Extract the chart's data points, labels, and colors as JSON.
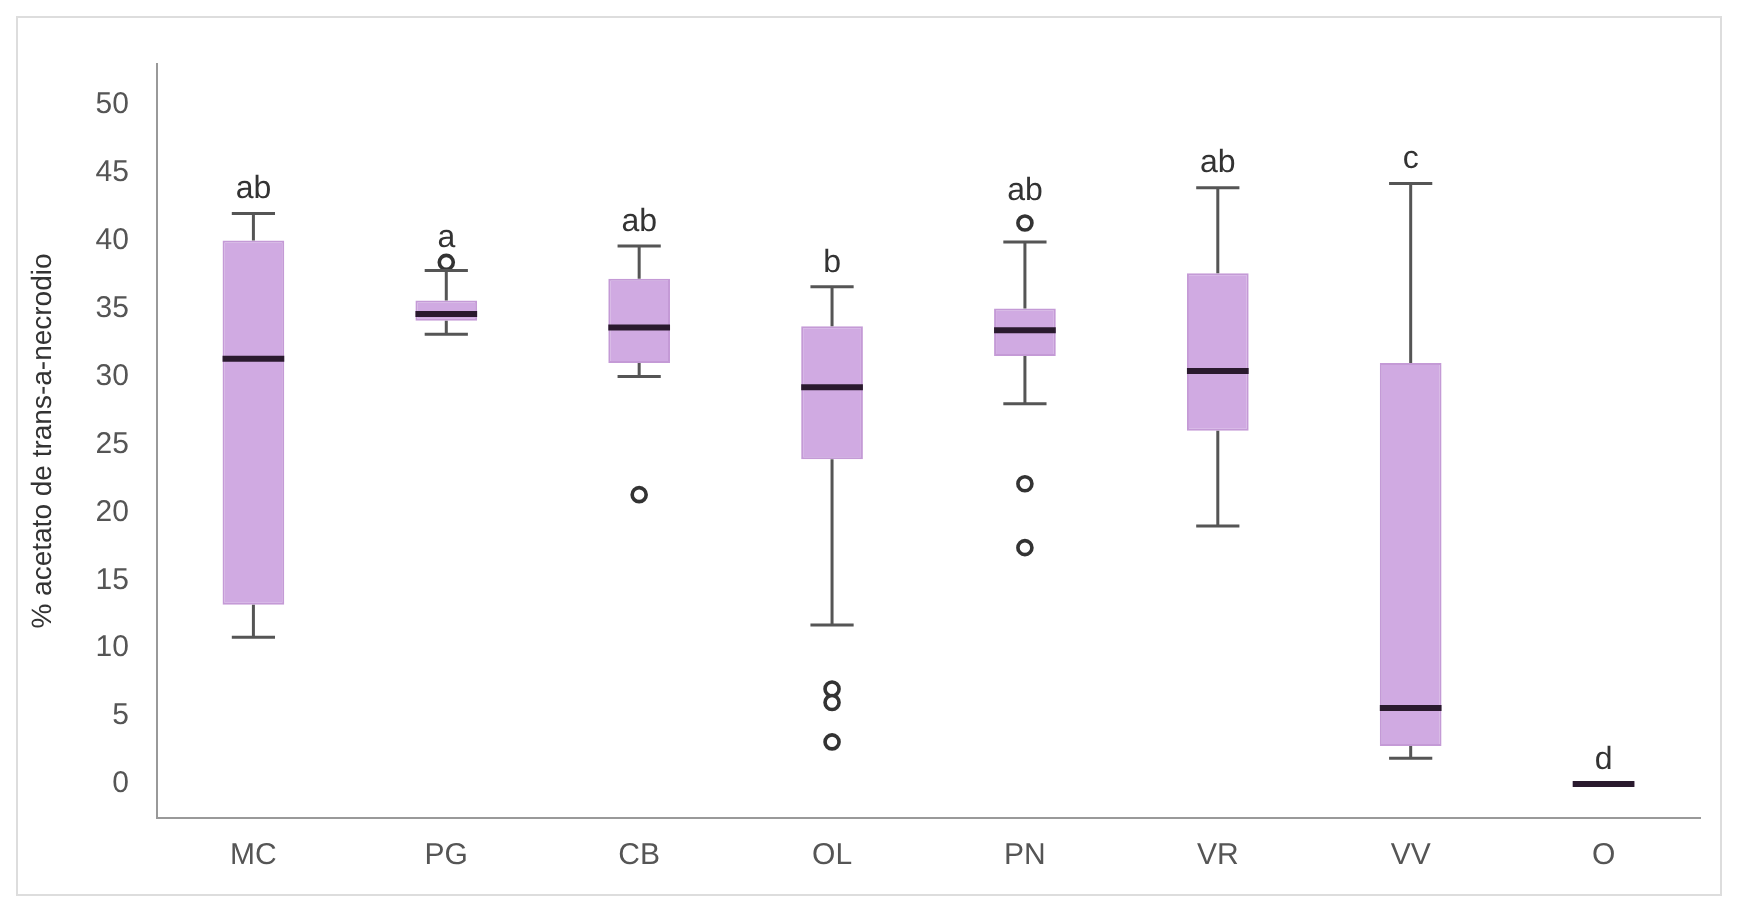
{
  "chart_data": {
    "type": "box",
    "ylabel": "% acetato de trans-a-necrodio",
    "categories": [
      "MC",
      "PG",
      "CB",
      "OL",
      "PN",
      "VR",
      "VV",
      "O"
    ],
    "color": "#d0aae2",
    "boxes": [
      {
        "low": 10.8,
        "q1": 13.2,
        "median": 31.3,
        "q3": 40.0,
        "high": 42.0
      },
      {
        "low": 33.1,
        "q1": 34.1,
        "median": 34.6,
        "q3": 35.6,
        "high": 37.8,
        "outliers": [
          38.4
        ]
      },
      {
        "low": 30.0,
        "q1": 31.0,
        "median": 33.6,
        "q3": 37.2,
        "high": 39.6,
        "outliers": [
          21.3
        ]
      },
      {
        "low": 11.7,
        "q1": 23.9,
        "median": 29.2,
        "q3": 33.7,
        "high": 36.6,
        "outliers": [
          7.0,
          6.0,
          3.1
        ]
      },
      {
        "low": 28.0,
        "q1": 31.5,
        "median": 33.4,
        "q3": 35.0,
        "high": 39.9,
        "outliers": [
          41.3,
          22.1,
          17.4
        ]
      },
      {
        "low": 19.0,
        "q1": 26.0,
        "median": 30.4,
        "q3": 37.6,
        "high": 43.9
      },
      {
        "low": 1.9,
        "q1": 2.8,
        "median": 5.6,
        "q3": 31.0,
        "high": 44.2
      },
      {
        "low": 0,
        "q1": 0,
        "median": 0,
        "q3": 0,
        "high": 0
      }
    ],
    "ylim": [
      -2.5,
      53
    ],
    "yticks": [
      0,
      5,
      10,
      15,
      20,
      25,
      30,
      35,
      40,
      45,
      50
    ],
    "grid": false,
    "legend": false,
    "annotations": [
      {
        "text": "ab",
        "x": "MC",
        "y": 42.0
      },
      {
        "text": "a",
        "x": "PG",
        "y": 38.4
      },
      {
        "text": "ab",
        "x": "CB",
        "y": 39.6
      },
      {
        "text": "b",
        "x": "OL",
        "y": 36.6
      },
      {
        "text": "ab",
        "x": "PN",
        "y": 39.9
      },
      {
        "text": "ab",
        "x": "VR",
        "y": 43.9
      },
      {
        "text": "c",
        "x": "VV",
        "y": 44.2
      },
      {
        "text": "d",
        "x": "O",
        "y": 0
      }
    ]
  }
}
